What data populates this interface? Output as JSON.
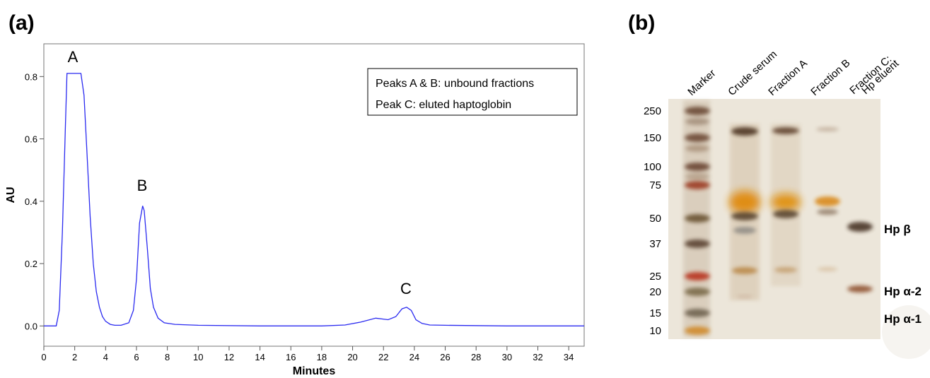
{
  "chart_data": {
    "type": "line",
    "panel_label": "(a)",
    "x_label": "Minutes",
    "y_label": "AU",
    "color": "#2a2af0",
    "x": [
      0,
      0.8,
      1.0,
      1.2,
      1.4,
      1.5,
      2.4,
      2.6,
      2.8,
      3.0,
      3.2,
      3.4,
      3.6,
      3.8,
      4.0,
      4.3,
      4.6,
      5.0,
      5.5,
      5.8,
      6.0,
      6.2,
      6.4,
      6.5,
      6.7,
      6.9,
      7.1,
      7.4,
      7.8,
      8.5,
      10,
      14,
      18,
      19.5,
      20.5,
      21.5,
      22.3,
      22.8,
      23.2,
      23.5,
      23.8,
      24.1,
      24.5,
      25,
      26,
      30,
      35
    ],
    "values": [
      0,
      0,
      0.05,
      0.3,
      0.65,
      0.81,
      0.81,
      0.74,
      0.55,
      0.35,
      0.2,
      0.11,
      0.06,
      0.03,
      0.015,
      0.005,
      0.002,
      0.002,
      0.01,
      0.05,
      0.15,
      0.33,
      0.385,
      0.37,
      0.25,
      0.12,
      0.06,
      0.025,
      0.01,
      0.005,
      0.002,
      0,
      0,
      0.003,
      0.012,
      0.025,
      0.02,
      0.03,
      0.055,
      0.06,
      0.05,
      0.02,
      0.008,
      0.003,
      0.002,
      0,
      0
    ],
    "xlim": [
      0,
      35
    ],
    "xticks": [
      0,
      2,
      4,
      6,
      8,
      10,
      12,
      14,
      16,
      18,
      20,
      22,
      24,
      26,
      28,
      30,
      32,
      34
    ],
    "ylim": [
      -0.065,
      0.905
    ],
    "yticks": [
      {
        "value": 0,
        "label": "0.0"
      },
      0.2,
      0.4,
      0.6,
      0.8
    ],
    "peak_labels": [
      "A",
      "B",
      "C"
    ],
    "note_lines": [
      "Peaks A & B: unbound fractions",
      "Peak C: eluted haptoglobin"
    ]
  },
  "gel": {
    "panel_label": "(b)",
    "lanes": [
      "Marker",
      "Crude serum",
      "Fraction A",
      "Fraction B",
      "Fraction C:",
      "Hp eluent"
    ],
    "markers": [
      "250",
      "150",
      "100",
      "75",
      "50",
      "37",
      "25",
      "20",
      "15",
      "10"
    ],
    "band_labels": [
      "Hp β",
      "Hp α-2",
      "Hp α-1"
    ]
  }
}
